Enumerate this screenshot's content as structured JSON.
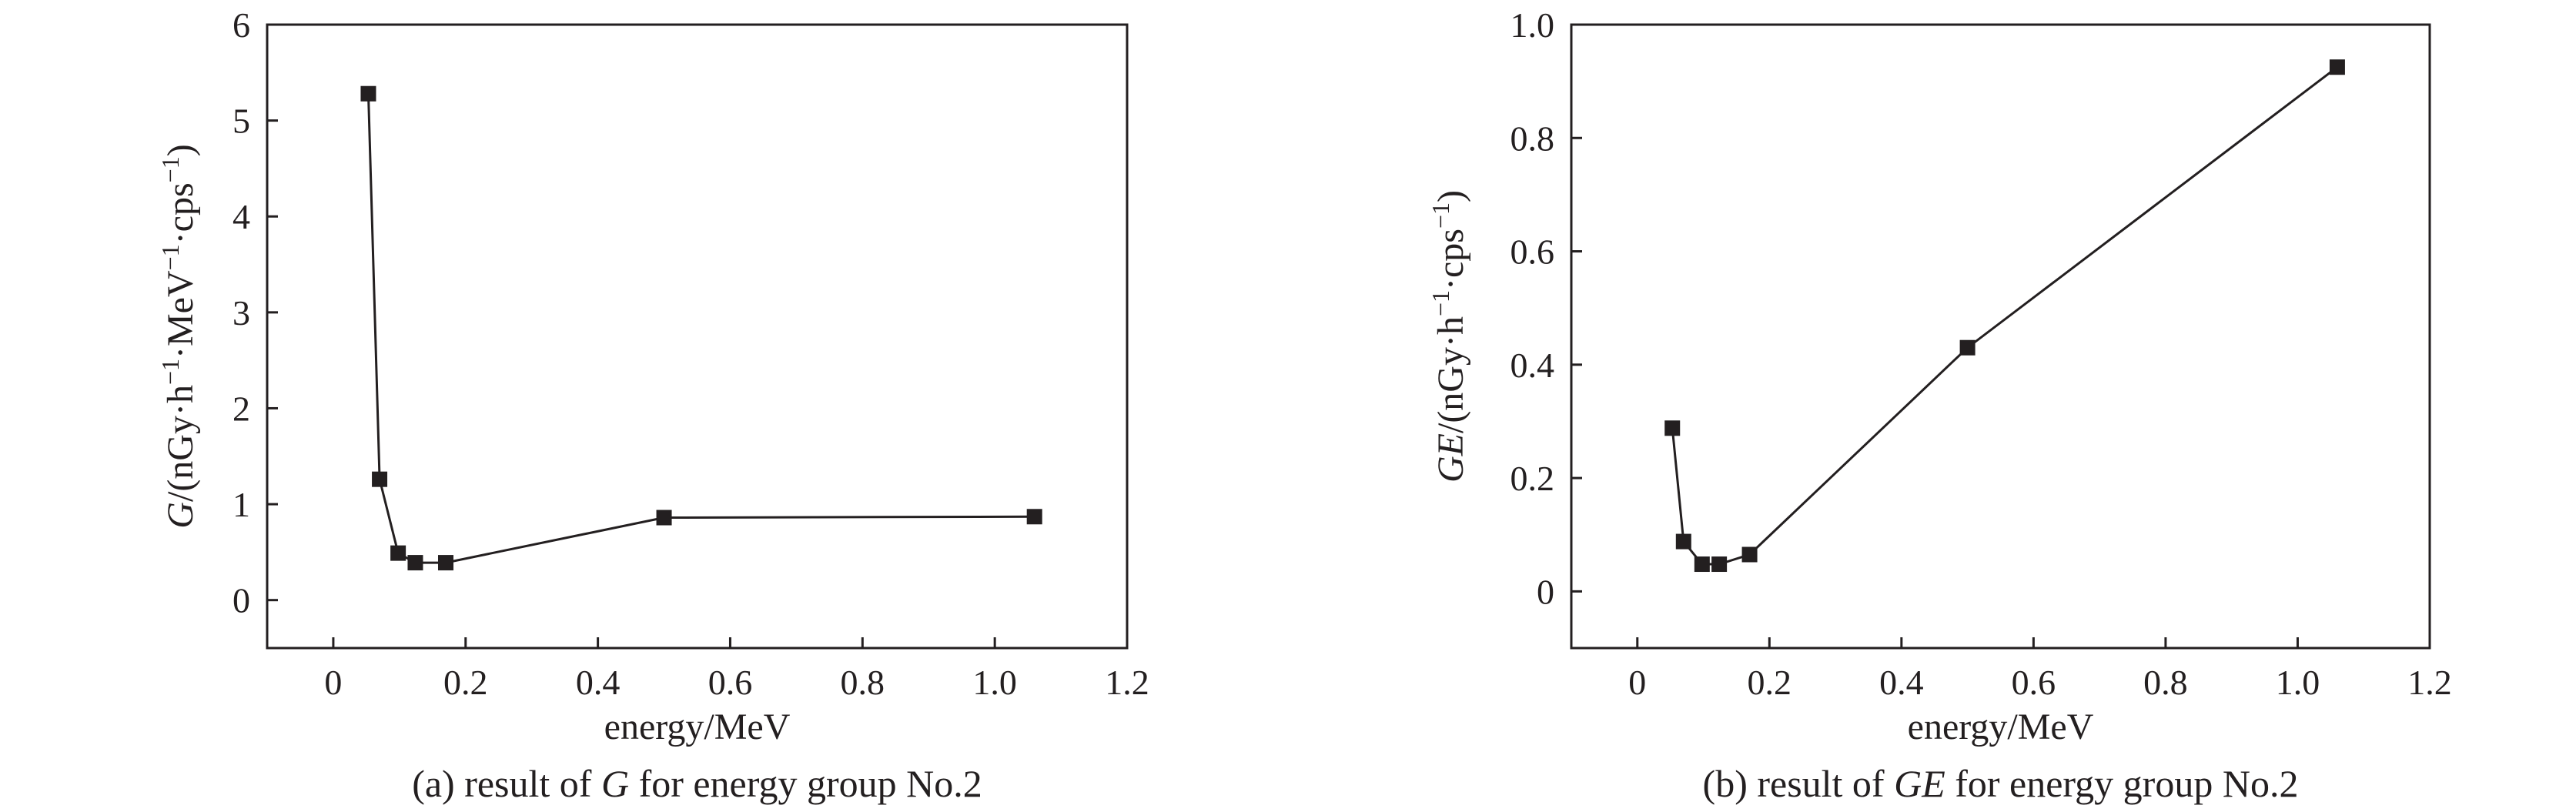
{
  "chart_data": [
    {
      "type": "line",
      "caption": {
        "pre": "(a) result of ",
        "italic": "G",
        "post": " for energy group No.2"
      },
      "xlabel": "energy/MeV",
      "ylabel": {
        "italic": "G",
        "text": "/(nGy·h",
        "sup1": "−1",
        "text2": "·MeV",
        "sup2": "−1",
        "text3": "·cps",
        "sup3": "−1",
        "close": ")"
      },
      "xlim": [
        -0.1,
        1.2
      ],
      "ylim": [
        -0.5,
        6
      ],
      "xticks": [
        0,
        0.2,
        0.4,
        0.6,
        0.8,
        1.0,
        1.2
      ],
      "xtick_labels": [
        "0",
        "0.2",
        "0.4",
        "0.6",
        "0.8",
        "1.0",
        "1.2"
      ],
      "yticks": [
        0,
        1,
        2,
        3,
        4,
        5,
        6
      ],
      "ytick_labels": [
        "0",
        "1",
        "2",
        "3",
        "4",
        "5",
        "6"
      ],
      "marker": "filled-square",
      "grid": false,
      "series": [
        {
          "x": [
            0.053,
            0.07,
            0.098,
            0.124,
            0.17,
            0.5,
            1.06
          ],
          "y": [
            5.28,
            1.26,
            0.49,
            0.39,
            0.39,
            0.86,
            0.87
          ]
        }
      ]
    },
    {
      "type": "line",
      "caption": {
        "pre": "(b) result of ",
        "italic": "GE",
        "post": " for energy group No.2"
      },
      "xlabel": "energy/MeV",
      "ylabel": {
        "italic": "GE",
        "text": "/(nGy·h",
        "sup1": "−1",
        "text2": "·cps",
        "sup2": "−1",
        "close": ")"
      },
      "xlim": [
        -0.1,
        1.2
      ],
      "ylim": [
        -0.1,
        1.0
      ],
      "xticks": [
        0,
        0.2,
        0.4,
        0.6,
        0.8,
        1.0,
        1.2
      ],
      "xtick_labels": [
        "0",
        "0.2",
        "0.4",
        "0.6",
        "0.8",
        "1.0",
        "1.2"
      ],
      "yticks": [
        0,
        0.2,
        0.4,
        0.6,
        0.8,
        1.0
      ],
      "ytick_labels": [
        "0",
        "0.2",
        "0.4",
        "0.6",
        "0.8",
        "1.0"
      ],
      "marker": "filled-square",
      "grid": false,
      "series": [
        {
          "x": [
            0.053,
            0.07,
            0.098,
            0.124,
            0.17,
            0.5,
            1.06
          ],
          "y": [
            0.288,
            0.088,
            0.048,
            0.048,
            0.065,
            0.43,
            0.925
          ]
        }
      ]
    }
  ]
}
